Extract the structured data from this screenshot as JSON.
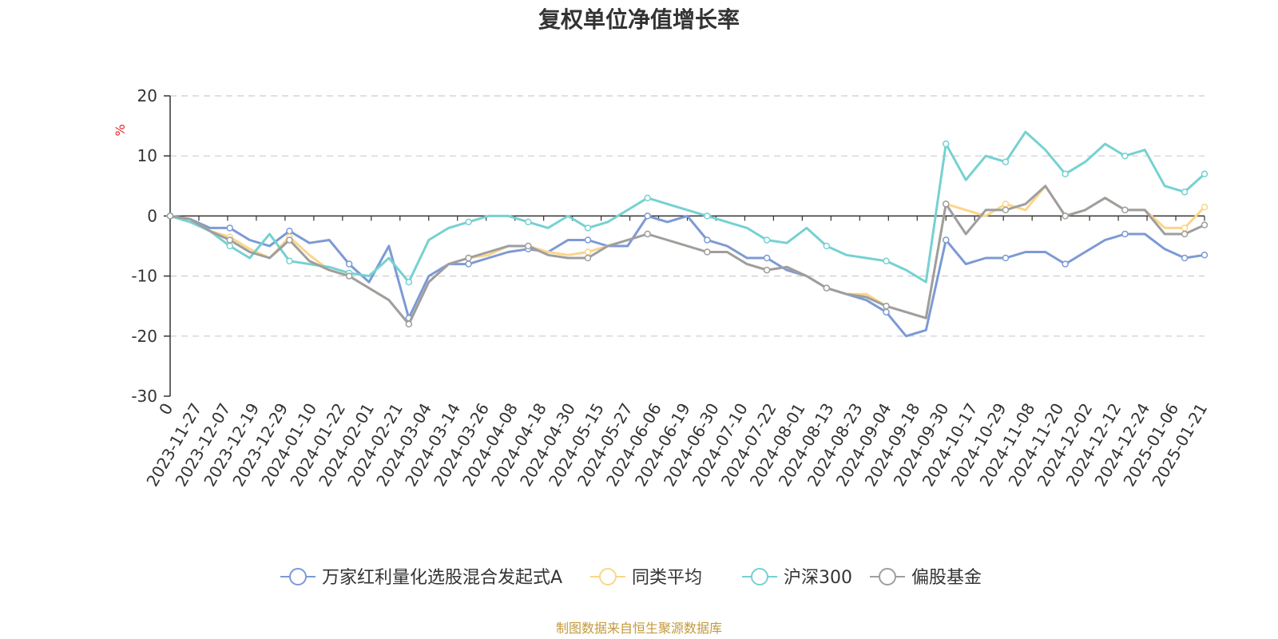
{
  "chart_data": {
    "type": "line",
    "title": "复权单位净值增长率",
    "ylabel": "%",
    "ylim": [
      -30,
      20
    ],
    "yticks": [
      20,
      10,
      0,
      -10,
      -20,
      -30
    ],
    "grid": true,
    "legend_position": "bottom",
    "source": "制图数据来自恒生聚源数据库",
    "x_tick_labels": [
      "0",
      "2023-11-27",
      "2023-12-07",
      "2023-12-19",
      "2023-12-29",
      "2024-01-10",
      "2024-01-22",
      "2024-02-01",
      "2024-02-21",
      "2024-03-04",
      "2024-03-14",
      "2024-03-26",
      "2024-04-08",
      "2024-04-18",
      "2024-04-30",
      "2024-05-15",
      "2024-05-27",
      "2024-06-06",
      "2024-06-19",
      "2024-06-30",
      "2024-07-10",
      "2024-07-22",
      "2024-08-01",
      "2024-08-13",
      "2024-08-23",
      "2024-09-04",
      "2024-09-18",
      "2024-09-30",
      "2024-10-17",
      "2024-10-29",
      "2024-11-08",
      "2024-11-20",
      "2024-12-02",
      "2024-12-12",
      "2024-12-24",
      "2025-01-06",
      "2025-01-21"
    ],
    "series": [
      {
        "name": "万家红利量化选股混合发起式A",
        "color": "#7c9ad4",
        "values": [
          0,
          -0.5,
          -2,
          -2,
          -4,
          -5,
          -2.5,
          -4.5,
          -4,
          -8,
          -11,
          -5,
          -17,
          -10,
          -8,
          -8,
          -7,
          -6,
          -5.5,
          -6,
          -4,
          -4,
          -5,
          -5,
          0,
          -1,
          0,
          -4,
          -5,
          -7,
          -7,
          -9,
          -10,
          -12,
          -13,
          -14,
          -16,
          -20,
          -19,
          -4,
          -8,
          -7,
          -7,
          -6,
          -6,
          -8,
          -6,
          -4,
          -3,
          -3,
          -5.5,
          -7,
          -6.5
        ]
      },
      {
        "name": "同类平均",
        "color": "#fcd58a",
        "values": [
          0,
          -0.5,
          -2.5,
          -3.5,
          -5.5,
          -7,
          -3.5,
          -6.5,
          -9,
          -10,
          -12,
          -14,
          -18,
          -11,
          -8,
          -7,
          -6.5,
          -5,
          -5,
          -6,
          -6.5,
          -6,
          -5,
          -4,
          -3,
          -4,
          -5,
          -6,
          -6,
          -8,
          -9,
          -8.5,
          -10,
          -12,
          -13,
          -13,
          -15,
          -16,
          -17,
          2,
          1,
          0,
          2,
          1,
          5,
          0,
          1,
          3,
          1,
          1,
          -2,
          -2,
          1.5
        ]
      },
      {
        "name": "沪深300",
        "color": "#76d1d1",
        "values": [
          0,
          -1,
          -2.5,
          -5,
          -7,
          -3,
          -7.5,
          -8,
          -8.5,
          -9.5,
          -10,
          -7,
          -11,
          -4,
          -2,
          -1,
          0,
          0,
          -1,
          -2,
          0,
          -2,
          -1,
          1,
          3,
          2,
          1,
          0,
          -1,
          -2,
          -4,
          -4.5,
          -2,
          -5,
          -6.5,
          -7,
          -7.5,
          -9,
          -11,
          12,
          6,
          10,
          9,
          14,
          11,
          7,
          9,
          12,
          10,
          11,
          5,
          4,
          7
        ]
      },
      {
        "name": "偏股基金",
        "color": "#9e9e9e",
        "values": [
          0,
          -0.5,
          -2.5,
          -4,
          -6,
          -7,
          -4,
          -7.5,
          -9,
          -10,
          -12,
          -14,
          -18,
          -11,
          -8,
          -7,
          -6,
          -5,
          -5,
          -6.5,
          -7,
          -7,
          -5,
          -4,
          -3,
          -4,
          -5,
          -6,
          -6,
          -8,
          -9,
          -8.5,
          -10,
          -12,
          -13,
          -13.5,
          -15,
          -16,
          -17,
          2,
          -3,
          1,
          1,
          2,
          5,
          0,
          1,
          3,
          1,
          1,
          -3,
          -3,
          -1.5
        ]
      }
    ]
  }
}
